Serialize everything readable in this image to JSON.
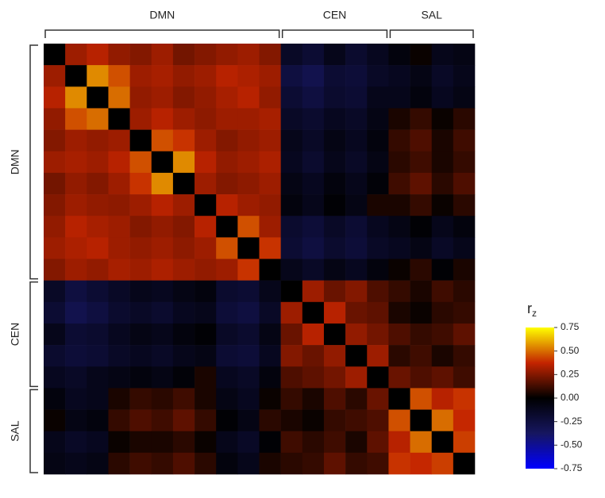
{
  "chart_data": {
    "type": "heatmap",
    "groups": [
      {
        "label": "DMN",
        "size": 11
      },
      {
        "label": "CEN",
        "size": 5
      },
      {
        "label": "SAL",
        "size": 4
      }
    ],
    "z": [
      [
        0,
        0.3,
        0.35,
        0.28,
        0.25,
        0.3,
        0.22,
        0.25,
        0.28,
        0.3,
        0.25,
        -0.15,
        -0.2,
        -0.1,
        -0.18,
        -0.12,
        -0.05,
        0.02,
        -0.1,
        -0.08
      ],
      [
        0.3,
        0,
        0.55,
        0.45,
        0.3,
        0.32,
        0.28,
        0.3,
        0.35,
        0.33,
        0.3,
        -0.25,
        -0.3,
        -0.2,
        -0.22,
        -0.15,
        -0.12,
        -0.08,
        -0.15,
        -0.1
      ],
      [
        0.35,
        0.55,
        0,
        0.5,
        0.28,
        0.3,
        0.25,
        0.28,
        0.32,
        0.35,
        0.28,
        -0.2,
        -0.25,
        -0.18,
        -0.2,
        -0.1,
        -0.1,
        -0.05,
        -0.12,
        -0.08
      ],
      [
        0.28,
        0.45,
        0.5,
        0,
        0.3,
        0.35,
        0.3,
        0.27,
        0.3,
        0.3,
        0.32,
        -0.15,
        -0.18,
        -0.12,
        -0.15,
        -0.08,
        0.05,
        0.1,
        0.02,
        0.08
      ],
      [
        0.25,
        0.3,
        0.28,
        0.3,
        0,
        0.45,
        0.4,
        0.3,
        0.25,
        0.28,
        0.3,
        -0.1,
        -0.15,
        -0.08,
        -0.12,
        -0.05,
        0.1,
        0.15,
        0.05,
        0.12
      ],
      [
        0.3,
        0.32,
        0.3,
        0.35,
        0.45,
        0,
        0.55,
        0.35,
        0.28,
        0.3,
        0.33,
        -0.12,
        -0.18,
        -0.1,
        -0.15,
        -0.08,
        0.08,
        0.12,
        0.05,
        0.1
      ],
      [
        0.22,
        0.28,
        0.25,
        0.3,
        0.4,
        0.55,
        0,
        0.3,
        0.25,
        0.27,
        0.3,
        -0.08,
        -0.12,
        -0.05,
        -0.1,
        -0.03,
        0.12,
        0.18,
        0.08,
        0.15
      ],
      [
        0.25,
        0.3,
        0.28,
        0.27,
        0.3,
        0.35,
        0.3,
        0,
        0.35,
        0.3,
        0.28,
        -0.05,
        -0.1,
        -0.02,
        -0.08,
        0.05,
        0.05,
        0.1,
        0.02,
        0.08
      ],
      [
        0.28,
        0.35,
        0.32,
        0.3,
        0.25,
        0.28,
        0.25,
        0.35,
        0,
        0.45,
        0.3,
        -0.18,
        -0.22,
        -0.15,
        -0.2,
        -0.12,
        -0.08,
        -0.02,
        -0.1,
        -0.05
      ],
      [
        0.3,
        0.33,
        0.35,
        0.3,
        0.28,
        0.3,
        0.27,
        0.3,
        0.45,
        0,
        0.4,
        -0.2,
        -0.25,
        -0.18,
        -0.22,
        -0.15,
        -0.12,
        -0.08,
        -0.15,
        -0.1
      ],
      [
        0.25,
        0.3,
        0.28,
        0.32,
        0.3,
        0.33,
        0.3,
        0.28,
        0.3,
        0.4,
        0,
        -0.1,
        -0.15,
        -0.08,
        -0.12,
        -0.05,
        0.02,
        0.08,
        -0.02,
        0.05
      ],
      [
        -0.15,
        -0.25,
        -0.2,
        -0.15,
        -0.1,
        -0.12,
        -0.08,
        -0.05,
        -0.18,
        -0.2,
        -0.1,
        0,
        0.3,
        0.2,
        0.25,
        0.15,
        0.1,
        0.05,
        0.12,
        0.08
      ],
      [
        -0.2,
        -0.3,
        -0.25,
        -0.18,
        -0.15,
        -0.18,
        -0.12,
        -0.1,
        -0.22,
        -0.25,
        -0.15,
        0.3,
        0,
        0.35,
        0.2,
        0.18,
        0.05,
        0.02,
        0.08,
        0.1
      ],
      [
        -0.1,
        -0.2,
        -0.18,
        -0.12,
        -0.08,
        -0.1,
        -0.05,
        -0.02,
        -0.15,
        -0.18,
        -0.08,
        0.2,
        0.35,
        0,
        0.28,
        0.22,
        0.15,
        0.1,
        0.12,
        0.18
      ],
      [
        -0.18,
        -0.22,
        -0.2,
        -0.15,
        -0.12,
        -0.15,
        -0.1,
        -0.08,
        -0.2,
        -0.22,
        -0.12,
        0.25,
        0.2,
        0.28,
        0,
        0.3,
        0.08,
        0.12,
        0.05,
        0.1
      ],
      [
        -0.12,
        -0.15,
        -0.1,
        -0.08,
        -0.05,
        -0.08,
        -0.03,
        0.05,
        -0.12,
        -0.15,
        -0.05,
        0.15,
        0.18,
        0.22,
        0.3,
        0,
        0.2,
        0.15,
        0.18,
        0.12
      ],
      [
        -0.05,
        -0.12,
        -0.1,
        0.05,
        0.1,
        0.08,
        0.12,
        0.05,
        -0.08,
        -0.12,
        0.02,
        0.1,
        0.05,
        0.15,
        0.08,
        0.2,
        0,
        0.45,
        0.35,
        0.4
      ],
      [
        0.02,
        -0.08,
        -0.05,
        0.1,
        0.15,
        0.12,
        0.18,
        0.1,
        -0.02,
        -0.08,
        0.08,
        0.05,
        0.02,
        0.1,
        0.12,
        0.15,
        0.45,
        0,
        0.5,
        0.38
      ],
      [
        -0.1,
        -0.15,
        -0.12,
        0.02,
        0.05,
        0.05,
        0.08,
        0.02,
        -0.1,
        -0.15,
        -0.02,
        0.12,
        0.08,
        0.12,
        0.05,
        0.18,
        0.35,
        0.5,
        0,
        0.42
      ],
      [
        -0.08,
        -0.1,
        -0.08,
        0.08,
        0.12,
        0.1,
        0.15,
        0.08,
        -0.05,
        -0.1,
        0.05,
        0.08,
        0.1,
        0.18,
        0.1,
        0.12,
        0.4,
        0.38,
        0.42,
        0
      ]
    ],
    "zlim": [
      -0.75,
      0.75
    ],
    "colormap": [
      "#0000ff",
      "#161660",
      "#000000",
      "#c42400",
      "#ffff00"
    ],
    "colorbar_title": "r",
    "colorbar_subscript": "z",
    "colorbar_ticks": [
      0.75,
      {
        "value": 0.5,
        "label": "0.50"
      },
      0.25,
      {
        "value": 0,
        "label": "0.00"
      },
      -0.25,
      {
        "value": -0.5,
        "label": "-0.50"
      },
      -0.75
    ]
  }
}
